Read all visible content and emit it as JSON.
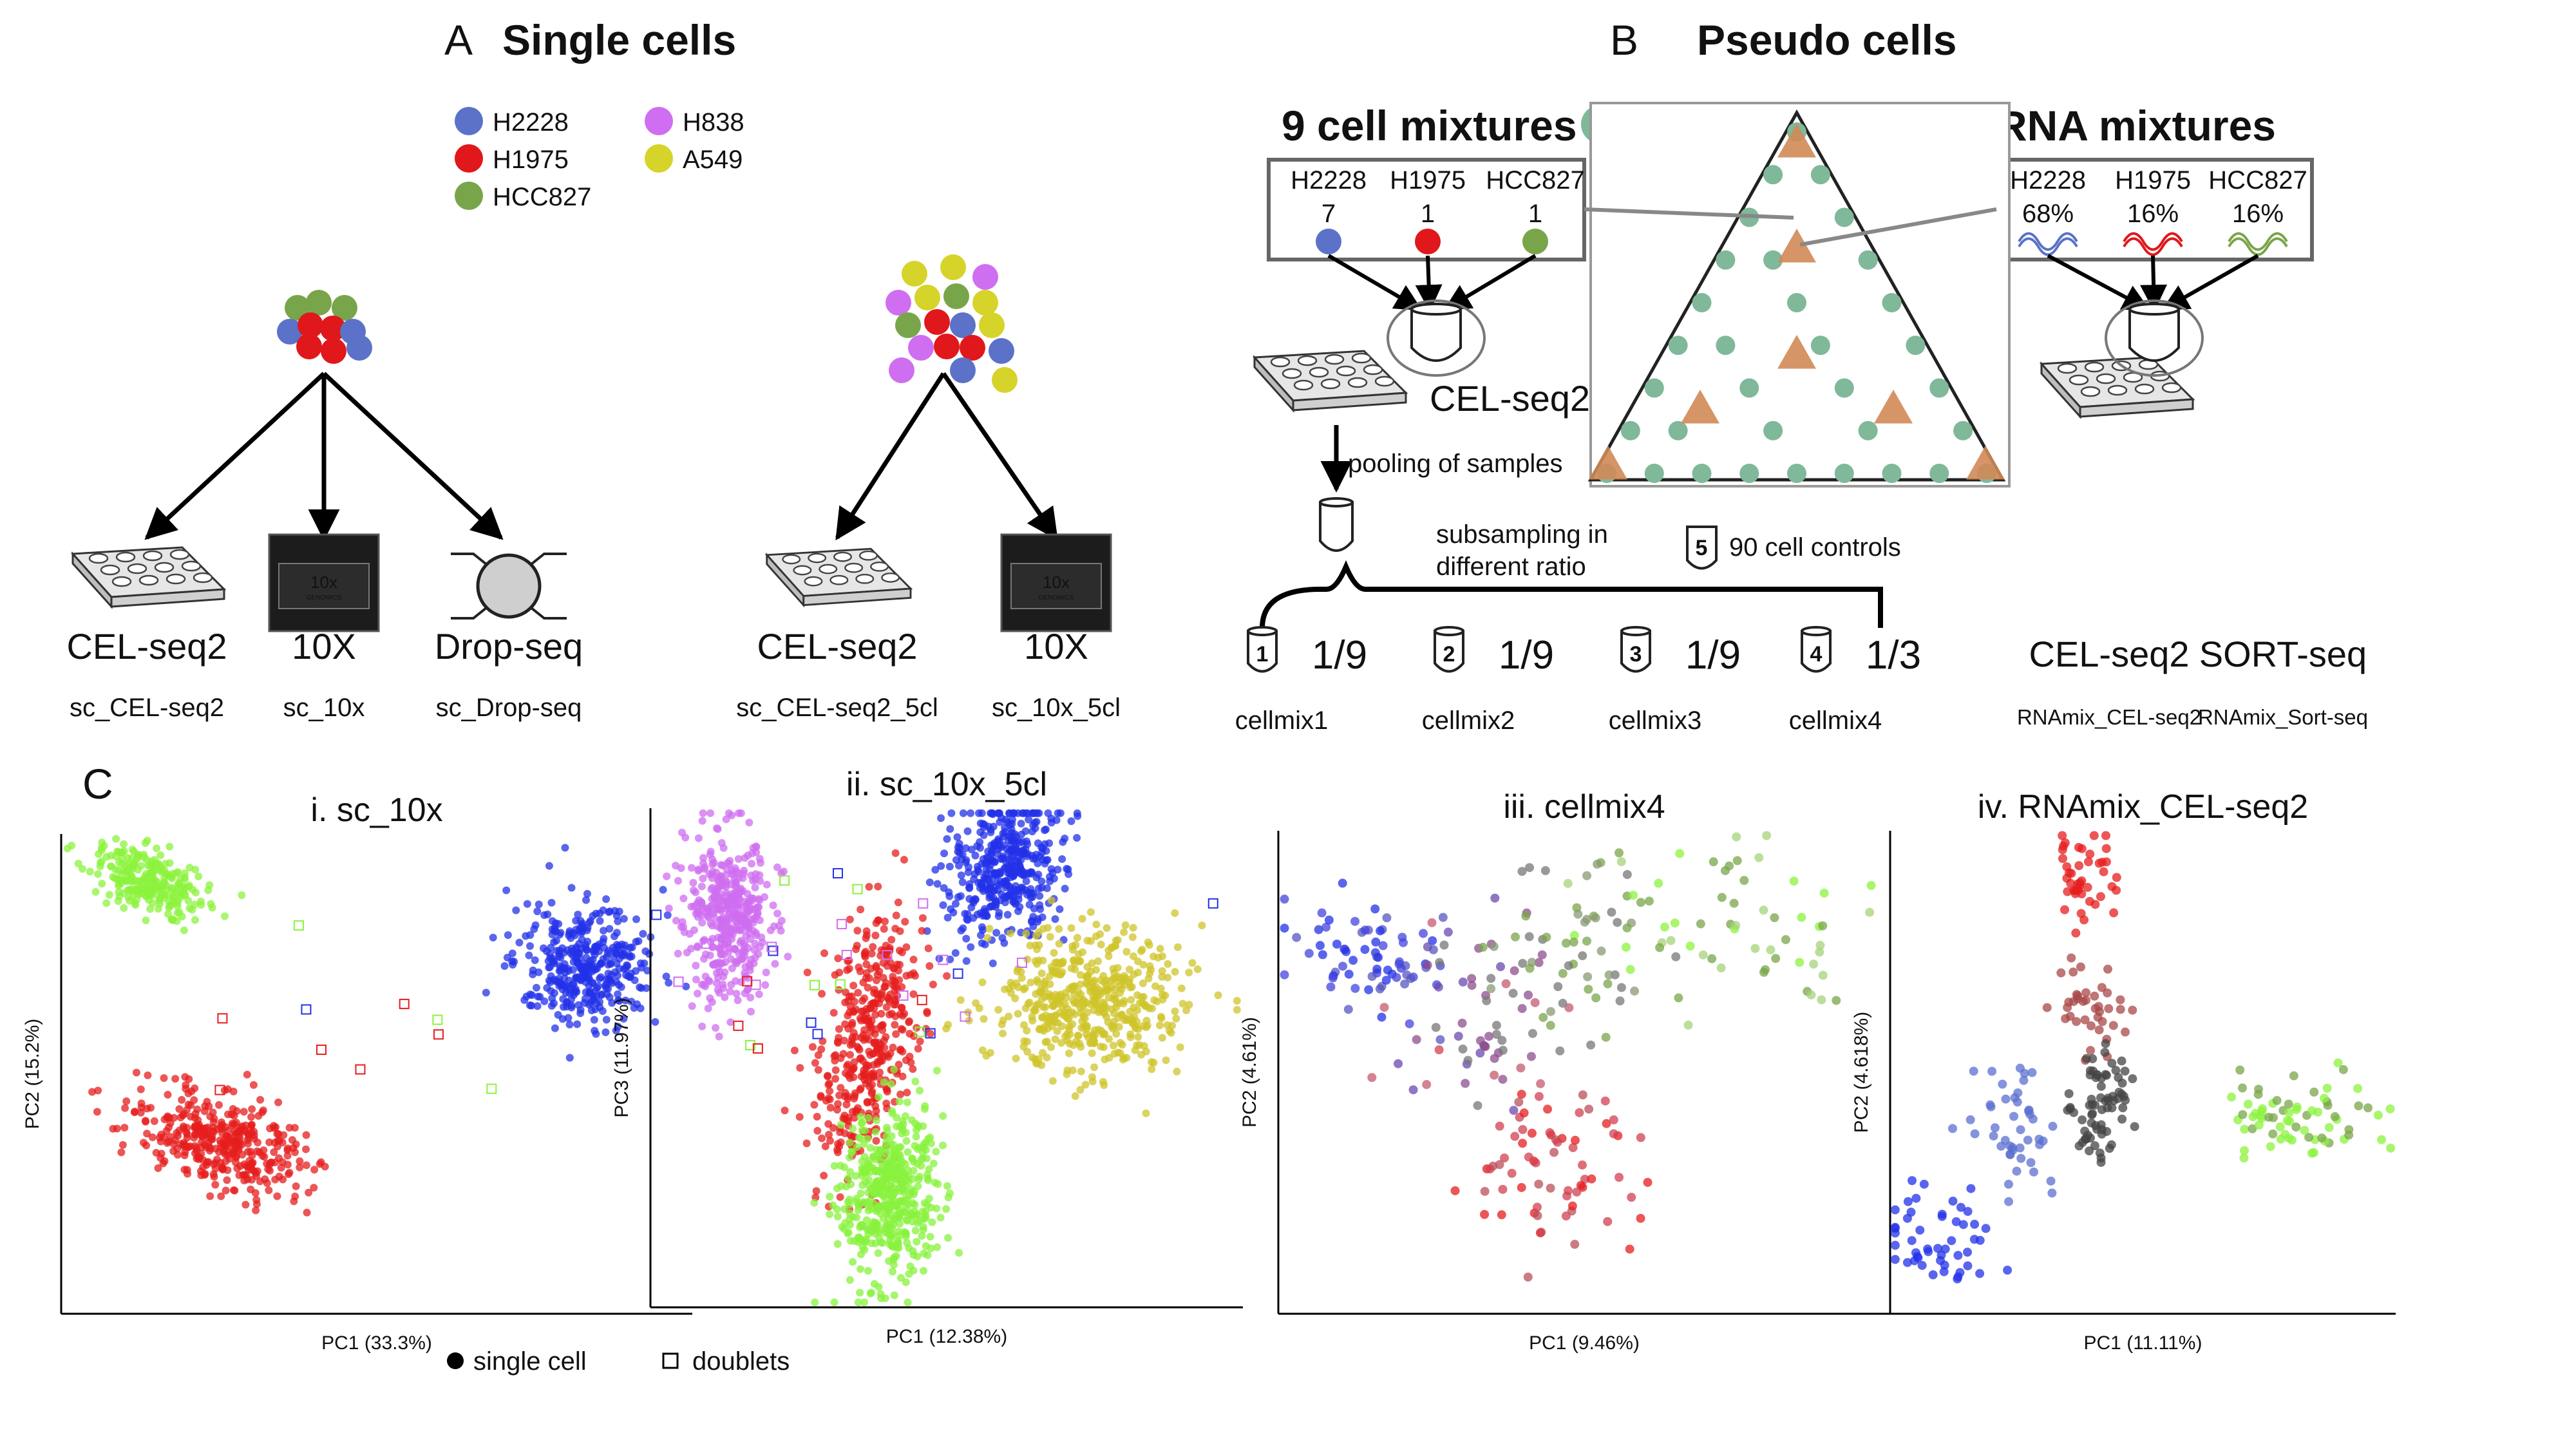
{
  "colors": {
    "H2228": "#5b72c8",
    "H1975": "#e0171b",
    "HCC827": "#79a54a",
    "H838": "#cf6ef0",
    "A549": "#d6d32a",
    "cell_mixture": "#80b89a",
    "rna_mixture": "#d08a56"
  },
  "panel_a": {
    "letter": "A",
    "title": "Single cells",
    "legend": [
      {
        "label": "H2228",
        "color": "#5b72c8"
      },
      {
        "label": "H1975",
        "color": "#e0171b"
      },
      {
        "label": "HCC827",
        "color": "#79a54a"
      },
      {
        "label": "H838",
        "color": "#cf6ef0"
      },
      {
        "label": "A549",
        "color": "#d6d32a"
      }
    ],
    "methods": [
      {
        "name": "CEL-seq2",
        "dataset": "sc_CEL-seq2",
        "icon": "well-plate-icon"
      },
      {
        "name": "10X",
        "dataset": "sc_10x",
        "icon": "chip-icon"
      },
      {
        "name": "Drop-seq",
        "dataset": "sc_Drop-seq",
        "icon": "droplet-icon"
      },
      {
        "name": "CEL-seq2",
        "dataset": "sc_CEL-seq2_5cl",
        "icon": "well-plate-icon"
      },
      {
        "name": "10X",
        "dataset": "sc_10x_5cl",
        "icon": "chip-icon"
      }
    ],
    "chip_text": "10x",
    "chip_subtext": "GENOMICS"
  },
  "panel_b": {
    "letter": "B",
    "title": "Pseudo cells",
    "cell_mixtures": {
      "title": "9 cell mixtures",
      "headers": [
        "H2228",
        "H1975",
        "HCC827"
      ],
      "counts": [
        "7",
        "1",
        "1"
      ]
    },
    "rna_mixtures": {
      "title": "RNA mixtures",
      "headers": [
        "H2228",
        "H1975",
        "HCC827"
      ],
      "percents": [
        "68%",
        "16%",
        "16%"
      ]
    },
    "cel_seq2_label": "CEL-seq2",
    "pooling_label": "pooling of samples",
    "subsampling_label": [
      "subsampling in",
      "different ratio"
    ],
    "controls_label": "90 cell controls",
    "controls_tube": "5",
    "cellmixes": [
      {
        "tube": "1",
        "ratio": "1/9",
        "name": "cellmix1"
      },
      {
        "tube": "2",
        "ratio": "1/9",
        "name": "cellmix2"
      },
      {
        "tube": "3",
        "ratio": "1/9",
        "name": "cellmix3"
      },
      {
        "tube": "4",
        "ratio": "1/3",
        "name": "cellmix4"
      }
    ],
    "rna_methods": [
      {
        "name": "CEL-seq2",
        "dataset": "RNAmix_CEL-seq2"
      },
      {
        "name": "SORT-seq",
        "dataset": "RNAmix_Sort-seq"
      }
    ]
  },
  "panel_c": {
    "letter": "C",
    "legend": [
      "single cell",
      "doublets"
    ],
    "plots": [
      {
        "title": "i. sc_10x",
        "xlabel": "PC1 (33.3%)",
        "ylabel": "PC2 (15.2%)"
      },
      {
        "title": "ii. sc_10x_5cl",
        "xlabel": "PC1 (12.38%)",
        "ylabel": "PC3 (11.97%)"
      },
      {
        "title": "iii. cellmix4",
        "xlabel": "PC1 (9.46%)",
        "ylabel": "PC2 (4.61%)"
      },
      {
        "title": "iv. RNAmix_CEL-seq2",
        "xlabel": "PC1 (11.11%)",
        "ylabel": "PC2 (4.618%)"
      }
    ]
  }
}
